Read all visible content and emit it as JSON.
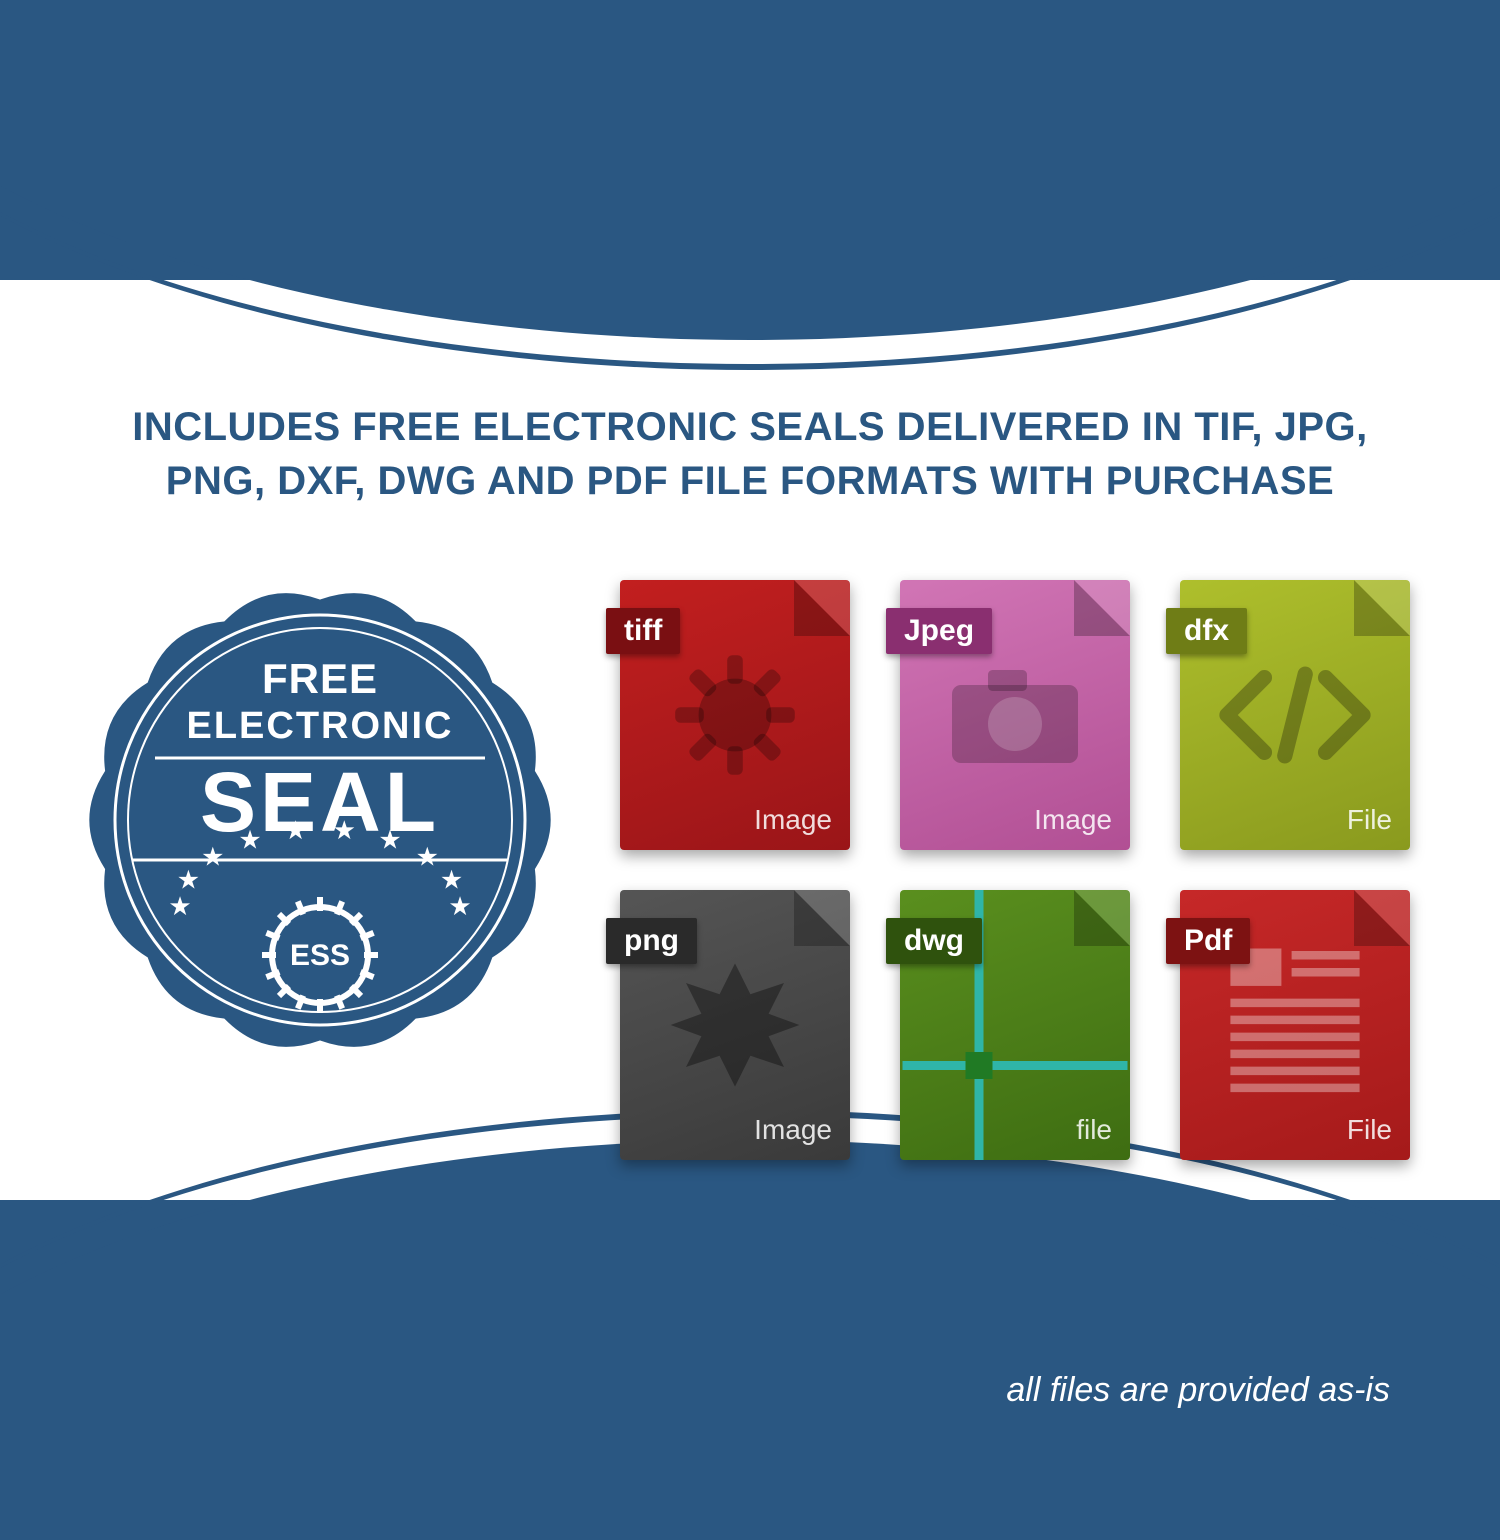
{
  "colors": {
    "brand_blue": "#2a5782",
    "white": "#ffffff"
  },
  "logo": {
    "text": "ESS"
  },
  "headline": "INCLUDES FREE ELECTRONIC SEALS DELIVERED IN TIF, JPG, PNG, DXF, DWG AND PDF FILE FORMATS WITH PURCHASE",
  "seal": {
    "line1": "FREE",
    "line2": "ELECTRONIC",
    "line3": "SEAL",
    "badge_text": "ESS",
    "fill": "#2a5782",
    "stroke": "#ffffff",
    "star_count": 10
  },
  "files": [
    {
      "label": "tiff",
      "kind": "Image",
      "bg": "#9a1518",
      "bg2": "#c21f1f",
      "tab": "#7a0f12",
      "glyph": "gear"
    },
    {
      "label": "Jpeg",
      "kind": "Image",
      "bg": "#b14f94",
      "bg2": "#d175b5",
      "tab": "#8a2f70",
      "glyph": "camera"
    },
    {
      "label": "dfx",
      "kind": "File",
      "bg": "#8a9a1e",
      "bg2": "#aebf2c",
      "tab": "#6f7d16",
      "glyph": "code"
    },
    {
      "label": "png",
      "kind": "Image",
      "bg": "#3a3a3a",
      "bg2": "#555555",
      "tab": "#2a2a2a",
      "glyph": "burst"
    },
    {
      "label": "dwg",
      "kind": "file",
      "bg": "#3e6d12",
      "bg2": "#5a8f1e",
      "tab": "#2f520d",
      "glyph": "grid"
    },
    {
      "label": "Pdf",
      "kind": "File",
      "bg": "#a51a1a",
      "bg2": "#c62828",
      "tab": "#7d1212",
      "glyph": "doc"
    }
  ],
  "disclaimer": "all files are provided as-is"
}
